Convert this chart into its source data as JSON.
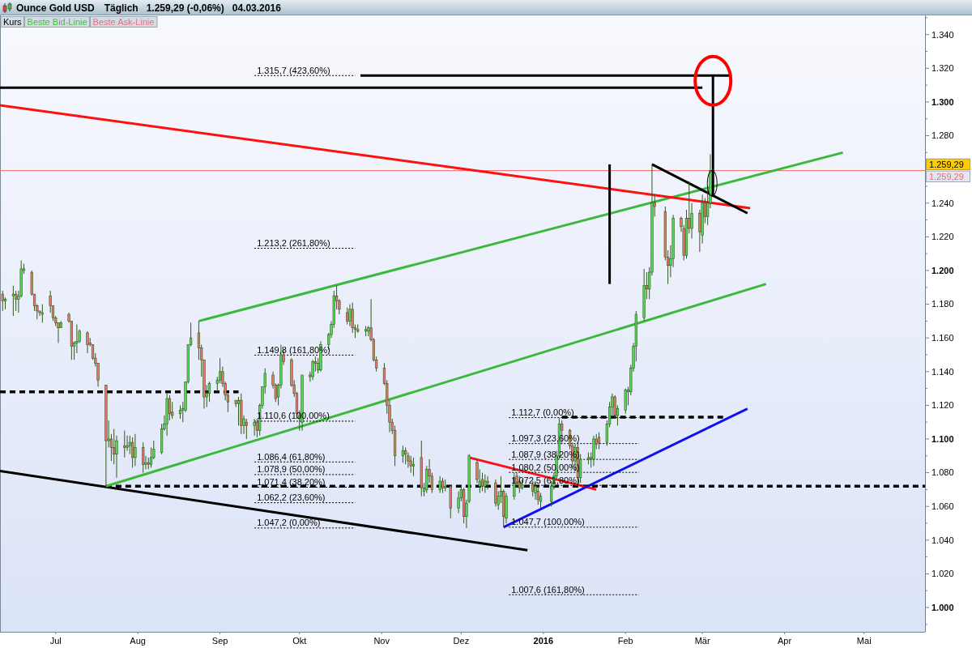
{
  "chart_data": {
    "type": "candlestick",
    "title": "Ounce Gold USD",
    "subtitle": "Täglich   1.259,29 (-0,06%)   04.03.2016",
    "x": [
      "2015-06-11",
      "2015-06-12",
      "2015-06-15",
      "2015-06-16",
      "2015-06-17",
      "2015-06-18",
      "2015-06-19",
      "2015-06-22",
      "2015-06-23",
      "2015-06-24",
      "2015-06-25",
      "2015-06-26",
      "2015-06-29",
      "2015-06-30",
      "2015-07-01",
      "2015-07-02",
      "2015-07-03",
      "2015-07-06",
      "2015-07-07",
      "2015-07-08",
      "2015-07-09",
      "2015-07-10",
      "2015-07-13",
      "2015-07-14",
      "2015-07-15",
      "2015-07-16",
      "2015-07-17",
      "2015-07-20",
      "2015-07-21",
      "2015-07-22",
      "2015-07-23",
      "2015-07-24",
      "2015-07-27",
      "2015-07-28",
      "2015-07-29",
      "2015-07-30",
      "2015-07-31",
      "2015-08-03",
      "2015-08-04",
      "2015-08-05",
      "2015-08-06",
      "2015-08-07",
      "2015-08-10",
      "2015-08-11",
      "2015-08-12",
      "2015-08-13",
      "2015-08-14",
      "2015-08-17",
      "2015-08-18",
      "2015-08-19",
      "2015-08-20",
      "2015-08-21",
      "2015-08-24",
      "2015-08-25",
      "2015-08-26",
      "2015-08-27",
      "2015-08-28",
      "2015-08-31",
      "2015-09-01",
      "2015-09-02",
      "2015-09-03",
      "2015-09-04",
      "2015-09-07",
      "2015-09-08",
      "2015-09-09",
      "2015-09-10",
      "2015-09-11",
      "2015-09-14",
      "2015-09-15",
      "2015-09-16",
      "2015-09-17",
      "2015-09-18",
      "2015-09-21",
      "2015-09-22",
      "2015-09-23",
      "2015-09-24",
      "2015-09-25",
      "2015-09-28",
      "2015-09-29",
      "2015-09-30",
      "2015-10-01",
      "2015-10-02",
      "2015-10-05",
      "2015-10-06",
      "2015-10-07",
      "2015-10-08",
      "2015-10-09",
      "2015-10-12",
      "2015-10-13",
      "2015-10-14",
      "2015-10-15",
      "2015-10-16",
      "2015-10-19",
      "2015-10-20",
      "2015-10-21",
      "2015-10-22",
      "2015-10-23",
      "2015-10-26",
      "2015-10-27",
      "2015-10-28",
      "2015-10-29",
      "2015-10-30",
      "2015-11-02",
      "2015-11-03",
      "2015-11-04",
      "2015-11-05",
      "2015-11-06",
      "2015-11-09",
      "2015-11-10",
      "2015-11-11",
      "2015-11-12",
      "2015-11-13",
      "2015-11-16",
      "2015-11-17",
      "2015-11-18",
      "2015-11-19",
      "2015-11-20",
      "2015-11-23",
      "2015-11-24",
      "2015-11-25",
      "2015-11-27",
      "2015-11-30",
      "2015-12-01",
      "2015-12-02",
      "2015-12-03",
      "2015-12-04",
      "2015-12-07",
      "2015-12-08",
      "2015-12-09",
      "2015-12-10",
      "2015-12-11",
      "2015-12-14",
      "2015-12-15",
      "2015-12-16",
      "2015-12-17",
      "2015-12-18",
      "2015-12-21",
      "2015-12-22",
      "2015-12-23",
      "2015-12-24",
      "2015-12-28",
      "2015-12-29",
      "2015-12-30",
      "2015-12-31",
      "2016-01-04",
      "2016-01-05",
      "2016-01-06",
      "2016-01-07",
      "2016-01-08",
      "2016-01-11",
      "2016-01-12",
      "2016-01-13",
      "2016-01-14",
      "2016-01-15",
      "2016-01-18",
      "2016-01-19",
      "2016-01-20",
      "2016-01-21",
      "2016-01-22",
      "2016-01-25",
      "2016-01-26",
      "2016-01-27",
      "2016-01-28",
      "2016-01-29",
      "2016-02-01",
      "2016-02-02",
      "2016-02-03",
      "2016-02-04",
      "2016-02-05",
      "2016-02-08",
      "2016-02-09",
      "2016-02-10",
      "2016-02-11",
      "2016-02-12",
      "2016-02-16",
      "2016-02-17",
      "2016-02-18",
      "2016-02-19",
      "2016-02-22",
      "2016-02-23",
      "2016-02-24",
      "2016-02-25",
      "2016-02-26",
      "2016-02-29",
      "2016-03-01",
      "2016-03-02",
      "2016-03-03",
      "2016-03-04"
    ],
    "ohlc": [
      [
        1186,
        1188,
        1176,
        1182
      ],
      [
        1182,
        1184,
        1177,
        1183
      ],
      [
        1185,
        1191,
        1173,
        1186
      ],
      [
        1186,
        1188,
        1176,
        1183
      ],
      [
        1183,
        1188,
        1175,
        1185
      ],
      [
        1185,
        1206,
        1184,
        1201
      ],
      [
        1200,
        1204,
        1198,
        1201
      ],
      [
        1199,
        1200,
        1185,
        1186
      ],
      [
        1186,
        1186,
        1176,
        1179
      ],
      [
        1179,
        1180,
        1171,
        1176
      ],
      [
        1176,
        1176,
        1173,
        1175
      ],
      [
        1174,
        1180,
        1169,
        1175
      ],
      [
        1185,
        1188,
        1175,
        1179
      ],
      [
        1179,
        1179,
        1170,
        1172
      ],
      [
        1172,
        1173,
        1167,
        1169
      ],
      [
        1169,
        1169,
        1157,
        1166
      ],
      [
        1166,
        1170,
        1166,
        1169
      ],
      [
        1174,
        1175,
        1169,
        1170
      ],
      [
        1170,
        1170,
        1147,
        1155
      ],
      [
        1155,
        1158,
        1147,
        1157
      ],
      [
        1157,
        1168,
        1151,
        1158
      ],
      [
        1158,
        1165,
        1157,
        1164
      ],
      [
        1163,
        1164,
        1151,
        1156
      ],
      [
        1157,
        1160,
        1155,
        1156
      ],
      [
        1156,
        1156,
        1147,
        1148
      ],
      [
        1148,
        1151,
        1143,
        1145
      ],
      [
        1145,
        1145,
        1131,
        1135
      ],
      [
        1132,
        1132,
        1072,
        1099
      ],
      [
        1099,
        1111,
        1095,
        1100
      ],
      [
        1100,
        1103,
        1087,
        1095
      ],
      [
        1095,
        1106,
        1085,
        1091
      ],
      [
        1091,
        1102,
        1077,
        1099
      ],
      [
        1096,
        1105,
        1089,
        1095
      ],
      [
        1095,
        1102,
        1093,
        1096
      ],
      [
        1096,
        1102,
        1091,
        1098
      ],
      [
        1098,
        1101,
        1083,
        1089
      ],
      [
        1089,
        1103,
        1084,
        1095
      ],
      [
        1095,
        1098,
        1080,
        1085
      ],
      [
        1085,
        1090,
        1082,
        1086
      ],
      [
        1086,
        1089,
        1082,
        1085
      ],
      [
        1085,
        1095,
        1083,
        1089
      ],
      [
        1089,
        1099,
        1088,
        1094
      ],
      [
        1092,
        1109,
        1091,
        1106
      ],
      [
        1106,
        1114,
        1105,
        1109
      ],
      [
        1109,
        1127,
        1102,
        1124
      ],
      [
        1124,
        1126,
        1111,
        1115
      ],
      [
        1116,
        1122,
        1112,
        1114
      ],
      [
        1115,
        1120,
        1112,
        1117
      ],
      [
        1117,
        1122,
        1110,
        1118
      ],
      [
        1117,
        1134,
        1116,
        1134
      ],
      [
        1134,
        1156,
        1133,
        1156
      ],
      [
        1156,
        1169,
        1155,
        1160
      ],
      [
        1163,
        1170,
        1147,
        1154
      ],
      [
        1154,
        1156,
        1137,
        1147
      ],
      [
        1147,
        1147,
        1118,
        1125
      ],
      [
        1125,
        1132,
        1119,
        1127
      ],
      [
        1127,
        1134,
        1122,
        1133
      ],
      [
        1133,
        1137,
        1128,
        1135
      ],
      [
        1135,
        1148,
        1133,
        1140
      ],
      [
        1140,
        1143,
        1131,
        1133
      ],
      [
        1133,
        1134,
        1123,
        1126
      ],
      [
        1126,
        1127,
        1116,
        1122
      ],
      [
        1123,
        1123,
        1119,
        1121
      ],
      [
        1121,
        1125,
        1108,
        1123
      ],
      [
        1123,
        1127,
        1103,
        1108
      ],
      [
        1108,
        1114,
        1103,
        1112
      ],
      [
        1110,
        1112,
        1100,
        1108
      ],
      [
        1108,
        1112,
        1102,
        1110
      ],
      [
        1110,
        1112,
        1101,
        1105
      ],
      [
        1105,
        1121,
        1102,
        1120
      ],
      [
        1120,
        1131,
        1118,
        1131
      ],
      [
        1131,
        1142,
        1127,
        1139
      ],
      [
        1138,
        1140,
        1130,
        1132
      ],
      [
        1132,
        1133,
        1122,
        1124
      ],
      [
        1125,
        1133,
        1120,
        1132
      ],
      [
        1132,
        1156,
        1130,
        1150
      ],
      [
        1150,
        1153,
        1144,
        1146
      ],
      [
        1147,
        1148,
        1131,
        1132
      ],
      [
        1132,
        1135,
        1125,
        1127
      ],
      [
        1127,
        1128,
        1112,
        1115
      ],
      [
        1112,
        1117,
        1105,
        1114
      ],
      [
        1110,
        1138,
        1105,
        1138
      ],
      [
        1138,
        1140,
        1134,
        1137
      ],
      [
        1137,
        1147,
        1135,
        1146
      ],
      [
        1146,
        1149,
        1140,
        1145
      ],
      [
        1141,
        1148,
        1139,
        1145
      ],
      [
        1141,
        1158,
        1140,
        1156
      ],
      [
        1156,
        1163,
        1153,
        1162
      ],
      [
        1162,
        1170,
        1160,
        1168
      ],
      [
        1168,
        1188,
        1166,
        1185
      ],
      [
        1185,
        1191,
        1177,
        1182
      ],
      [
        1182,
        1183,
        1174,
        1177
      ],
      [
        1175,
        1178,
        1168,
        1170
      ],
      [
        1170,
        1180,
        1167,
        1177
      ],
      [
        1177,
        1181,
        1163,
        1166
      ],
      [
        1166,
        1168,
        1160,
        1165
      ],
      [
        1165,
        1168,
        1163,
        1164
      ],
      [
        1164,
        1167,
        1161,
        1165
      ],
      [
        1164,
        1167,
        1161,
        1166
      ],
      [
        1166,
        1183,
        1158,
        1159
      ],
      [
        1159,
        1160,
        1146,
        1147
      ],
      [
        1147,
        1149,
        1140,
        1142
      ],
      [
        1142,
        1145,
        1132,
        1133
      ],
      [
        1133,
        1135,
        1115,
        1120
      ],
      [
        1120,
        1123,
        1104,
        1110
      ],
      [
        1110,
        1112,
        1103,
        1105
      ],
      [
        1105,
        1108,
        1084,
        1090
      ],
      [
        1090,
        1096,
        1086,
        1093
      ],
      [
        1093,
        1095,
        1085,
        1091
      ],
      [
        1090,
        1092,
        1083,
        1087
      ],
      [
        1087,
        1090,
        1080,
        1084
      ],
      [
        1084,
        1089,
        1078,
        1085
      ],
      [
        1089,
        1099,
        1066,
        1071
      ],
      [
        1069,
        1074,
        1066,
        1071
      ],
      [
        1070,
        1084,
        1068,
        1082
      ],
      [
        1082,
        1088,
        1074,
        1078
      ],
      [
        1078,
        1080,
        1068,
        1070
      ],
      [
        1070,
        1078,
        1068,
        1075
      ],
      [
        1075,
        1077,
        1068,
        1071
      ],
      [
        1071,
        1076,
        1069,
        1072
      ],
      [
        1072,
        1073,
        1053,
        1059
      ],
      [
        1059,
        1069,
        1056,
        1065
      ],
      [
        1065,
        1072,
        1063,
        1070
      ],
      [
        1070,
        1071,
        1050,
        1054
      ],
      [
        1054,
        1064,
        1047.2,
        1062
      ],
      [
        1063,
        1091,
        1062,
        1090
      ],
      [
        1086,
        1088,
        1074,
        1076
      ],
      [
        1072,
        1082,
        1068,
        1075
      ],
      [
        1076,
        1080,
        1069,
        1072
      ],
      [
        1072,
        1079,
        1068,
        1075
      ],
      [
        1075,
        1078,
        1070,
        1074
      ],
      [
        1074,
        1076,
        1060,
        1062
      ],
      [
        1061,
        1069,
        1058,
        1066
      ],
      [
        1066,
        1078,
        1062,
        1069
      ],
      [
        1069,
        1070,
        1047.7,
        1054
      ],
      [
        1053,
        1068,
        1050,
        1066
      ],
      [
        1066,
        1080,
        1064,
        1077
      ],
      [
        1078,
        1080,
        1071,
        1074
      ],
      [
        1075,
        1078,
        1068,
        1071
      ],
      [
        1071,
        1076,
        1070,
        1073
      ],
      [
        1073,
        1075,
        1066,
        1069
      ],
      [
        1068,
        1075,
        1064,
        1072
      ],
      [
        1069,
        1072,
        1061,
        1064
      ],
      [
        1063,
        1068,
        1059,
        1066
      ],
      [
        1063,
        1075,
        1060,
        1072
      ],
      [
        1072,
        1080,
        1070,
        1078
      ],
      [
        1078,
        1093,
        1076,
        1090
      ],
      [
        1090,
        1112.7,
        1088,
        1109
      ],
      [
        1109,
        1111,
        1097,
        1105
      ],
      [
        1105,
        1106,
        1094,
        1096
      ],
      [
        1096,
        1098,
        1083,
        1087
      ],
      [
        1087,
        1097,
        1081,
        1095
      ],
      [
        1095,
        1098,
        1072,
        1077
      ],
      [
        1077,
        1091,
        1074,
        1088
      ],
      [
        1088,
        1092,
        1085,
        1089
      ],
      [
        1089,
        1092,
        1083,
        1088
      ],
      [
        1088,
        1102,
        1084,
        1100
      ],
      [
        1100,
        1103,
        1094,
        1097
      ],
      [
        1101,
        1104,
        1094,
        1098
      ],
      [
        1098,
        1111,
        1096,
        1109
      ],
      [
        1109,
        1122,
        1107,
        1119
      ],
      [
        1119,
        1127,
        1113,
        1125
      ],
      [
        1125,
        1126,
        1112,
        1114
      ],
      [
        1114,
        1120,
        1108,
        1118
      ],
      [
        1117,
        1130,
        1115,
        1129
      ],
      [
        1128,
        1131,
        1120,
        1129
      ],
      [
        1128,
        1144,
        1126,
        1142
      ],
      [
        1142,
        1157,
        1140,
        1155
      ],
      [
        1155,
        1176,
        1146,
        1174
      ],
      [
        1172,
        1201,
        1170,
        1191
      ],
      [
        1191,
        1199,
        1183,
        1189
      ],
      [
        1189,
        1202,
        1183,
        1199
      ],
      [
        1199,
        1263,
        1197,
        1240
      ],
      [
        1240,
        1245,
        1232,
        1238
      ],
      [
        1235,
        1238,
        1206,
        1208
      ],
      [
        1208,
        1212,
        1192,
        1203
      ],
      [
        1203,
        1215,
        1196,
        1207
      ],
      [
        1207,
        1233,
        1202,
        1231
      ],
      [
        1231,
        1232,
        1223,
        1226
      ],
      [
        1225,
        1227,
        1206,
        1209
      ],
      [
        1209,
        1236,
        1207,
        1231
      ],
      [
        1231,
        1253,
        1222,
        1225
      ],
      [
        1225,
        1240,
        1219,
        1234
      ],
      [
        1234,
        1236,
        1211,
        1223
      ],
      [
        1221,
        1245,
        1216,
        1240
      ],
      [
        1240,
        1243,
        1228,
        1232
      ],
      [
        1232,
        1248,
        1227,
        1240
      ],
      [
        1240,
        1269,
        1237,
        1259.29
      ]
    ],
    "series": [
      {
        "type": "line",
        "color": "#000000",
        "x": [
          "2015-06-10",
          "2015-12-26"
        ],
        "values": [
          1081,
          1034
        ]
      },
      {
        "type": "line",
        "color": "#000000",
        "line_style": "dashed",
        "x": [
          "2015-06-10",
          "2015-09-08"
        ],
        "values": [
          1128,
          1128
        ]
      },
      {
        "type": "line",
        "color": "#000000",
        "line_style": "dashed",
        "x": [
          "2015-07-20",
          "2016-05-24"
        ],
        "values": [
          1072,
          1072
        ]
      },
      {
        "type": "line",
        "color": "#000000",
        "line_style": "dashed",
        "x": [
          "2016-01-08",
          "2016-03-09"
        ],
        "values": [
          1113,
          1113
        ]
      },
      {
        "type": "line",
        "color": "#3cb93c",
        "x": [
          "2015-07-20",
          "2016-03-25"
        ],
        "values": [
          1072,
          1192
        ]
      },
      {
        "type": "line",
        "color": "#3cb93c",
        "x": [
          "2015-08-24",
          "2016-04-23"
        ],
        "values": [
          1170,
          1270
        ]
      },
      {
        "type": "line",
        "color": "#ff1010",
        "x": [
          "2015-06-10",
          "2016-03-19"
        ],
        "values": [
          1298,
          1237
        ]
      },
      {
        "type": "line",
        "color": "#ff1010",
        "x": [
          "2015-12-04",
          "2016-01-21"
        ],
        "values": [
          1089,
          1070
        ]
      },
      {
        "type": "line",
        "color": "#1010ee",
        "x": [
          "2015-12-17",
          "2016-03-18"
        ],
        "values": [
          1047.7,
          1118
        ]
      },
      {
        "type": "line",
        "color": "#000000",
        "x": [
          "2016-02-11",
          "2016-03-18"
        ],
        "values": [
          1263,
          1234
        ]
      },
      {
        "type": "line",
        "color": "#000000",
        "x": [
          "2016-01-26",
          "2016-01-26"
        ],
        "values": [
          1263,
          1192
        ]
      },
      {
        "type": "line",
        "color": "#000000",
        "x": [
          "2015-06-10",
          "2016-03-01"
        ],
        "values": [
          1308.5,
          1308.5
        ]
      },
      {
        "type": "line",
        "color": "#000000",
        "x": [
          "2015-10-24",
          "2016-03-12"
        ],
        "values": [
          1315.7,
          1315.7
        ]
      },
      {
        "type": "line",
        "color": "#000000",
        "x": [
          "2016-03-05",
          "2016-03-05"
        ],
        "values": [
          1316,
          1244
        ]
      },
      {
        "type": "line",
        "color": "#000000",
        "line_style": "dotted",
        "x": [
          "2015-09-14",
          "2015-10-22"
        ],
        "values": [
          1315.7,
          1315.7
        ]
      },
      {
        "type": "line",
        "color": "#000000",
        "line_style": "dotted",
        "x": [
          "2015-09-14",
          "2015-10-22"
        ],
        "values": [
          1213.2,
          1213.2
        ]
      },
      {
        "type": "line",
        "color": "#000000",
        "line_style": "dotted",
        "x": [
          "2015-09-14",
          "2015-10-22"
        ],
        "values": [
          1149.8,
          1149.8
        ]
      },
      {
        "type": "line",
        "color": "#000000",
        "line_style": "dotted",
        "x": [
          "2015-09-14",
          "2015-10-22"
        ],
        "values": [
          1110.6,
          1110.6
        ]
      },
      {
        "type": "line",
        "color": "#000000",
        "line_style": "dotted",
        "x": [
          "2015-09-14",
          "2015-10-22"
        ],
        "values": [
          1086.4,
          1086.4
        ]
      },
      {
        "type": "line",
        "color": "#000000",
        "line_style": "dotted",
        "x": [
          "2015-09-14",
          "2015-10-22"
        ],
        "values": [
          1078.9,
          1078.9
        ]
      },
      {
        "type": "line",
        "color": "#000000",
        "line_style": "dotted",
        "x": [
          "2015-09-14",
          "2015-10-22"
        ],
        "values": [
          1071.4,
          1071.4
        ]
      },
      {
        "type": "line",
        "color": "#000000",
        "line_style": "dotted",
        "x": [
          "2015-09-14",
          "2015-10-22"
        ],
        "values": [
          1062.2,
          1062.2
        ]
      },
      {
        "type": "line",
        "color": "#000000",
        "line_style": "dotted",
        "x": [
          "2015-09-14",
          "2015-10-22"
        ],
        "values": [
          1047.2,
          1047.2
        ]
      },
      {
        "type": "line",
        "color": "#000000",
        "line_style": "dotted",
        "x": [
          "2015-12-19",
          "2016-02-06"
        ],
        "values": [
          1112.7,
          1112.7
        ]
      },
      {
        "type": "line",
        "color": "#000000",
        "line_style": "dotted",
        "x": [
          "2015-12-19",
          "2016-02-06"
        ],
        "values": [
          1097.3,
          1097.3
        ]
      },
      {
        "type": "line",
        "color": "#000000",
        "line_style": "dotted",
        "x": [
          "2015-12-19",
          "2016-02-06"
        ],
        "values": [
          1087.9,
          1087.9
        ]
      },
      {
        "type": "line",
        "color": "#000000",
        "line_style": "dotted",
        "x": [
          "2015-12-19",
          "2016-02-06"
        ],
        "values": [
          1080.2,
          1080.2
        ]
      },
      {
        "type": "line",
        "color": "#000000",
        "line_style": "dotted",
        "x": [
          "2015-12-19",
          "2016-02-06"
        ],
        "values": [
          1072.5,
          1072.5
        ]
      },
      {
        "type": "line",
        "color": "#000000",
        "line_style": "dotted",
        "x": [
          "2015-12-19",
          "2016-02-06"
        ],
        "values": [
          1047.7,
          1047.7
        ]
      },
      {
        "type": "line",
        "color": "#000000",
        "line_style": "dotted",
        "x": [
          "2015-12-19",
          "2016-02-06"
        ],
        "values": [
          1007.6,
          1007.6
        ]
      }
    ],
    "xlim": [
      "2015-06-10",
      "2016-05-24"
    ],
    "xticks": [
      {
        "value": "2015-07-01",
        "label": "Jul"
      },
      {
        "value": "2015-08-01",
        "label": "Aug"
      },
      {
        "value": "2015-09-01",
        "label": "Sep"
      },
      {
        "value": "2015-10-01",
        "label": "Okt"
      },
      {
        "value": "2015-11-01",
        "label": "Nov"
      },
      {
        "value": "2015-12-01",
        "label": "Dez"
      },
      {
        "value": "2016-01-01",
        "label": "2016"
      },
      {
        "value": "2016-02-01",
        "label": "Feb"
      },
      {
        "value": "2016-03-01",
        "label": "Mär"
      },
      {
        "value": "2016-04-01",
        "label": "Apr"
      },
      {
        "value": "2016-05-01",
        "label": "Mai"
      }
    ],
    "ylim": [
      985.6,
      1351.4
    ],
    "yticks": [
      {
        "value": 990,
        "label": null
      },
      {
        "value": 1000,
        "label": "1.000"
      },
      {
        "value": 1010,
        "label": null
      },
      {
        "value": 1020,
        "label": "1.020"
      },
      {
        "value": 1030,
        "label": null
      },
      {
        "value": 1040,
        "label": "1.040"
      },
      {
        "value": 1050,
        "label": null
      },
      {
        "value": 1060,
        "label": "1.060"
      },
      {
        "value": 1070,
        "label": null
      },
      {
        "value": 1080,
        "label": "1.080"
      },
      {
        "value": 1090,
        "label": null
      },
      {
        "value": 1100,
        "label": "1.100"
      },
      {
        "value": 1110,
        "label": null
      },
      {
        "value": 1120,
        "label": "1.120"
      },
      {
        "value": 1130,
        "label": null
      },
      {
        "value": 1140,
        "label": "1.140"
      },
      {
        "value": 1150,
        "label": null
      },
      {
        "value": 1160,
        "label": "1.160"
      },
      {
        "value": 1170,
        "label": null
      },
      {
        "value": 1180,
        "label": "1.180"
      },
      {
        "value": 1190,
        "label": null
      },
      {
        "value": 1200,
        "label": "1.200"
      },
      {
        "value": 1210,
        "label": null
      },
      {
        "value": 1220,
        "label": "1.220"
      },
      {
        "value": 1230,
        "label": null
      },
      {
        "value": 1240,
        "label": "1.240"
      },
      {
        "value": 1250,
        "label": null
      },
      {
        "value": 1260,
        "label": null
      },
      {
        "value": 1270,
        "label": null
      },
      {
        "value": 1280,
        "label": "1.280"
      },
      {
        "value": 1290,
        "label": null
      },
      {
        "value": 1300,
        "label": "1.300"
      },
      {
        "value": 1310,
        "label": null
      },
      {
        "value": 1320,
        "label": "1.320"
      },
      {
        "value": 1330,
        "label": null
      },
      {
        "value": 1340,
        "label": "1.340"
      },
      {
        "value": 1350,
        "label": null
      }
    ],
    "ref_lines": [
      {
        "axis": "y",
        "value": 1259.29,
        "label": "1.259,29",
        "color": "#f06a6a"
      }
    ],
    "annotations": [
      "1.259,29",
      "Kurs",
      "Beste Bid-Linie",
      "Beste Ask-Linie",
      {
        "text": "1.315,7 (423,60%)",
        "x": "2015-09-14",
        "y": 1315.7
      },
      {
        "text": "1.213,2 (261,80%)",
        "x": "2015-09-14",
        "y": 1213.2
      },
      {
        "text": "1.149,8 (161,80%)",
        "x": "2015-09-14",
        "y": 1149.8
      },
      {
        "text": "1.110,6 (100,00%)",
        "x": "2015-09-14",
        "y": 1110.6
      },
      {
        "text": "1.086,4 (61,80%)",
        "x": "2015-09-14",
        "y": 1086.4
      },
      {
        "text": "1.078,9 (50,00%)",
        "x": "2015-09-14",
        "y": 1078.9
      },
      {
        "text": "1.071,4 (38,20%)",
        "x": "2015-09-14",
        "y": 1071.4
      },
      {
        "text": "1.062,2 (23,60%)",
        "x": "2015-09-14",
        "y": 1062.2
      },
      {
        "text": "1.047,2 (0,00%)",
        "x": "2015-09-14",
        "y": 1047.2
      },
      {
        "text": "1.112,7 (0,00%)",
        "x": "2015-12-19",
        "y": 1112.7
      },
      {
        "text": "1.097,3 (23,60%)",
        "x": "2015-12-19",
        "y": 1097.3
      },
      {
        "text": "1.087,9 (38,20%)",
        "x": "2015-12-19",
        "y": 1087.9
      },
      {
        "text": "1.080,2 (50,00%)",
        "x": "2015-12-19",
        "y": 1080.2
      },
      {
        "text": "1.072,5 (61,80%)",
        "x": "2015-12-19",
        "y": 1072.5
      },
      {
        "text": "1.047,7 (100,00%)",
        "x": "2015-12-19",
        "y": 1047.7
      },
      {
        "text": "1.007,6 (161,80%)",
        "x": "2015-12-19",
        "y": 1007.6
      }
    ]
  }
}
